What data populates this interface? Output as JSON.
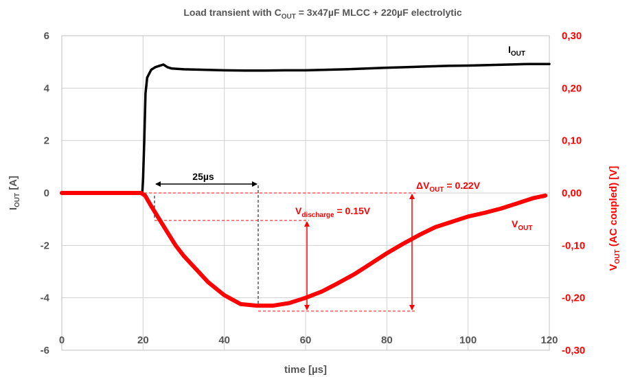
{
  "chart_data": {
    "type": "line",
    "title": {
      "prefix": "Load transient with C",
      "sub": "OUT",
      "suffix": " = 3x47µF MLCC + 220µF electrolytic"
    },
    "xlabel": "time  [µs]",
    "ylabel_left": {
      "main": "I",
      "sub": "OUT",
      "rest": "  [A]"
    },
    "ylabel_right": {
      "main": "V",
      "sub": "OUT",
      "rest": " (AC coupled)  [V]"
    },
    "xlim": [
      0,
      120
    ],
    "ylim_left": [
      -6,
      6
    ],
    "ylim_right": [
      -0.3,
      0.3
    ],
    "x_ticks": [
      "0",
      "20",
      "40",
      "60",
      "80",
      "100",
      "120"
    ],
    "y_ticks_left": [
      "6",
      "4",
      "2",
      "0",
      "-2",
      "-4",
      "-6"
    ],
    "y_ticks_right": [
      "0,30",
      "0,20",
      "0,10",
      "0,00",
      "-0,10",
      "-0,20",
      "-0,30"
    ],
    "grid": true,
    "series": [
      {
        "name": "IOUT",
        "axis": "left",
        "color": "#000000",
        "x": [
          0,
          19.8,
          20.0,
          20.3,
          20.6,
          21.0,
          22.0,
          23.0,
          24.0,
          25.0,
          26.0,
          27.0,
          30,
          35,
          40,
          45,
          50,
          55,
          60,
          65,
          70,
          75,
          80,
          85,
          90,
          95,
          100,
          105,
          110,
          115,
          120
        ],
        "values": [
          0.0,
          0.0,
          0.5,
          2.0,
          3.8,
          4.4,
          4.7,
          4.8,
          4.85,
          4.9,
          4.8,
          4.75,
          4.72,
          4.7,
          4.68,
          4.67,
          4.67,
          4.68,
          4.68,
          4.7,
          4.72,
          4.75,
          4.78,
          4.8,
          4.83,
          4.85,
          4.86,
          4.88,
          4.9,
          4.92,
          4.92
        ]
      },
      {
        "name": "VOUT",
        "axis": "right",
        "color": "#ff0000",
        "x": [
          0,
          19.5,
          20.5,
          22,
          24,
          26,
          28,
          30,
          33,
          36,
          40,
          44,
          48,
          52,
          56,
          60,
          64,
          68,
          72,
          76,
          80,
          84,
          88,
          92,
          96,
          100,
          104,
          108,
          112,
          116,
          119
        ],
        "values": [
          0.0,
          0.0,
          -0.005,
          -0.025,
          -0.05,
          -0.075,
          -0.1,
          -0.12,
          -0.145,
          -0.17,
          -0.195,
          -0.212,
          -0.215,
          -0.215,
          -0.21,
          -0.2,
          -0.188,
          -0.172,
          -0.155,
          -0.135,
          -0.115,
          -0.097,
          -0.08,
          -0.065,
          -0.055,
          -0.045,
          -0.038,
          -0.03,
          -0.02,
          -0.01,
          -0.005
        ]
      }
    ],
    "annotations": {
      "iout_label": {
        "main": "I",
        "sub": "OUT"
      },
      "vout_label": {
        "main": "V",
        "sub": "OUT"
      },
      "delta_label": {
        "main": "ΔV",
        "sub": "OUT",
        "rest": " = 0.22V"
      },
      "discharge_label": {
        "main": "V",
        "sub": "discharge",
        "rest": " = 0.15V"
      },
      "interval_label": "25µs"
    },
    "colors": {
      "grid": "#d0d0d0",
      "axis_text": "#555555",
      "right_axis": "#ff0000",
      "iout": "#000000",
      "vout": "#ff0000"
    }
  }
}
